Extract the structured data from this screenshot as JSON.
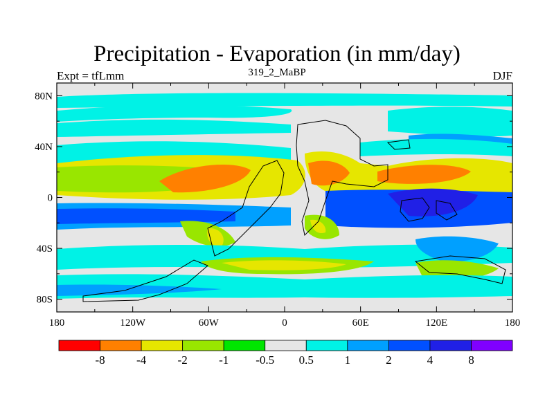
{
  "chart_data": {
    "type": "heatmap",
    "title": "Precipitation - Evaporation (in mm/day)",
    "subtitle": "319_2_MaBP",
    "left_label": "Expt = tfLmm",
    "right_label": "DJF",
    "x_ticks": [
      "180",
      "120W",
      "60W",
      "0",
      "60E",
      "120E",
      "180"
    ],
    "x_tick_values": [
      -180,
      -120,
      -60,
      0,
      60,
      120,
      180
    ],
    "y_ticks": [
      "80N",
      "40N",
      "0",
      "40S",
      "80S"
    ],
    "y_tick_values": [
      80,
      40,
      0,
      -40,
      -80
    ],
    "xlim": [
      -180,
      180
    ],
    "ylim": [
      -90,
      90
    ],
    "colorbar": {
      "labels": [
        "-8",
        "-4",
        "-2",
        "-1",
        "-0.5",
        "0.5",
        "1",
        "2",
        "4",
        "8"
      ],
      "colors": [
        "#ff0000",
        "#ff8000",
        "#e6e600",
        "#99e600",
        "#00e600",
        "#e6e6e6",
        "#00f2e6",
        "#00a0ff",
        "#0050ff",
        "#2020e6",
        "#8000ff"
      ]
    }
  }
}
